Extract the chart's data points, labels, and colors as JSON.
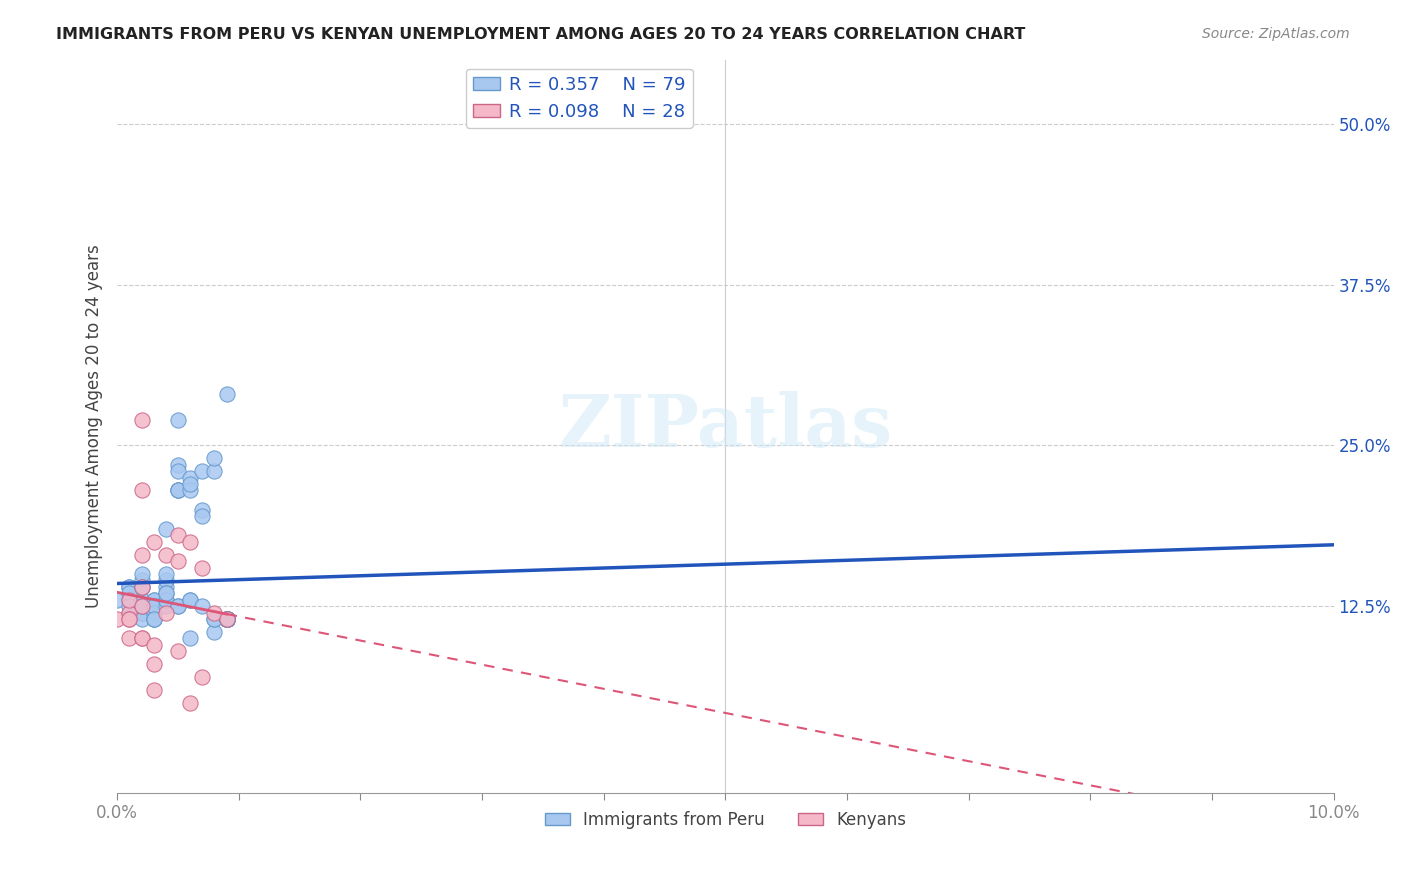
{
  "title": "IMMIGRANTS FROM PERU VS KENYAN UNEMPLOYMENT AMONG AGES 20 TO 24 YEARS CORRELATION CHART",
  "source": "Source: ZipAtlas.com",
  "xlabel": "",
  "ylabel": "Unemployment Among Ages 20 to 24 years",
  "xlim": [
    0.0,
    0.1
  ],
  "ylim": [
    -0.02,
    0.55
  ],
  "yticks": [
    0.0,
    0.125,
    0.25,
    0.375,
    0.5
  ],
  "ytick_labels": [
    "",
    "12.5%",
    "25.0%",
    "37.5%",
    "50.0%"
  ],
  "xticks": [
    0.0,
    0.01,
    0.02,
    0.03,
    0.04,
    0.05,
    0.06,
    0.07,
    0.08,
    0.09,
    0.1
  ],
  "xtick_labels": [
    "0.0%",
    "",
    "",
    "",
    "",
    "",
    "",
    "",
    "",
    "",
    "10.0%"
  ],
  "peru_R": 0.357,
  "peru_N": 79,
  "kenya_R": 0.098,
  "kenya_N": 28,
  "peru_color": "#a8c8f0",
  "peru_edge_color": "#6699cc",
  "kenya_color": "#f4b8c8",
  "kenya_edge_color": "#cc6688",
  "trendline_peru_color": "#2255bb",
  "trendline_kenya_solid_color": "#dd5577",
  "trendline_kenya_dash_color": "#dd5577",
  "watermark": "ZIPatlas",
  "peru_x": [
    0.0,
    0.001,
    0.001,
    0.001,
    0.001,
    0.001,
    0.001,
    0.002,
    0.002,
    0.002,
    0.002,
    0.002,
    0.002,
    0.002,
    0.002,
    0.002,
    0.002,
    0.003,
    0.003,
    0.003,
    0.003,
    0.003,
    0.003,
    0.003,
    0.003,
    0.003,
    0.004,
    0.004,
    0.004,
    0.004,
    0.004,
    0.004,
    0.004,
    0.004,
    0.004,
    0.005,
    0.005,
    0.005,
    0.005,
    0.005,
    0.005,
    0.005,
    0.005,
    0.006,
    0.006,
    0.006,
    0.006,
    0.006,
    0.006,
    0.007,
    0.007,
    0.007,
    0.007,
    0.008,
    0.008,
    0.008,
    0.008,
    0.008,
    0.009,
    0.009,
    0.009,
    0.009,
    0.009,
    0.009,
    0.009,
    0.009,
    0.009,
    0.009,
    0.009,
    0.009,
    0.009,
    0.009,
    0.009,
    0.009,
    0.009,
    0.009,
    0.009,
    0.009,
    0.009
  ],
  "peru_y": [
    0.13,
    0.14,
    0.13,
    0.14,
    0.135,
    0.12,
    0.125,
    0.145,
    0.13,
    0.12,
    0.125,
    0.12,
    0.115,
    0.125,
    0.15,
    0.14,
    0.14,
    0.13,
    0.13,
    0.125,
    0.12,
    0.115,
    0.12,
    0.115,
    0.125,
    0.115,
    0.14,
    0.145,
    0.13,
    0.135,
    0.15,
    0.185,
    0.125,
    0.13,
    0.135,
    0.27,
    0.235,
    0.215,
    0.23,
    0.215,
    0.215,
    0.125,
    0.125,
    0.225,
    0.215,
    0.22,
    0.13,
    0.13,
    0.1,
    0.2,
    0.195,
    0.23,
    0.125,
    0.23,
    0.24,
    0.105,
    0.115,
    0.115,
    0.29,
    0.115,
    0.115,
    0.115,
    0.115,
    0.115,
    0.115,
    0.115,
    0.115,
    0.115,
    0.115,
    0.115,
    0.115,
    0.115,
    0.115,
    0.115,
    0.115,
    0.115,
    0.115,
    0.115,
    0.115
  ],
  "kenya_x": [
    0.0,
    0.001,
    0.001,
    0.001,
    0.001,
    0.001,
    0.002,
    0.002,
    0.002,
    0.002,
    0.002,
    0.002,
    0.002,
    0.003,
    0.003,
    0.003,
    0.003,
    0.004,
    0.004,
    0.005,
    0.005,
    0.005,
    0.006,
    0.006,
    0.007,
    0.007,
    0.008,
    0.009
  ],
  "kenya_y": [
    0.115,
    0.12,
    0.13,
    0.115,
    0.115,
    0.1,
    0.27,
    0.215,
    0.165,
    0.14,
    0.125,
    0.1,
    0.1,
    0.175,
    0.095,
    0.08,
    0.06,
    0.165,
    0.12,
    0.18,
    0.16,
    0.09,
    0.175,
    0.05,
    0.155,
    0.07,
    0.12,
    0.115
  ]
}
